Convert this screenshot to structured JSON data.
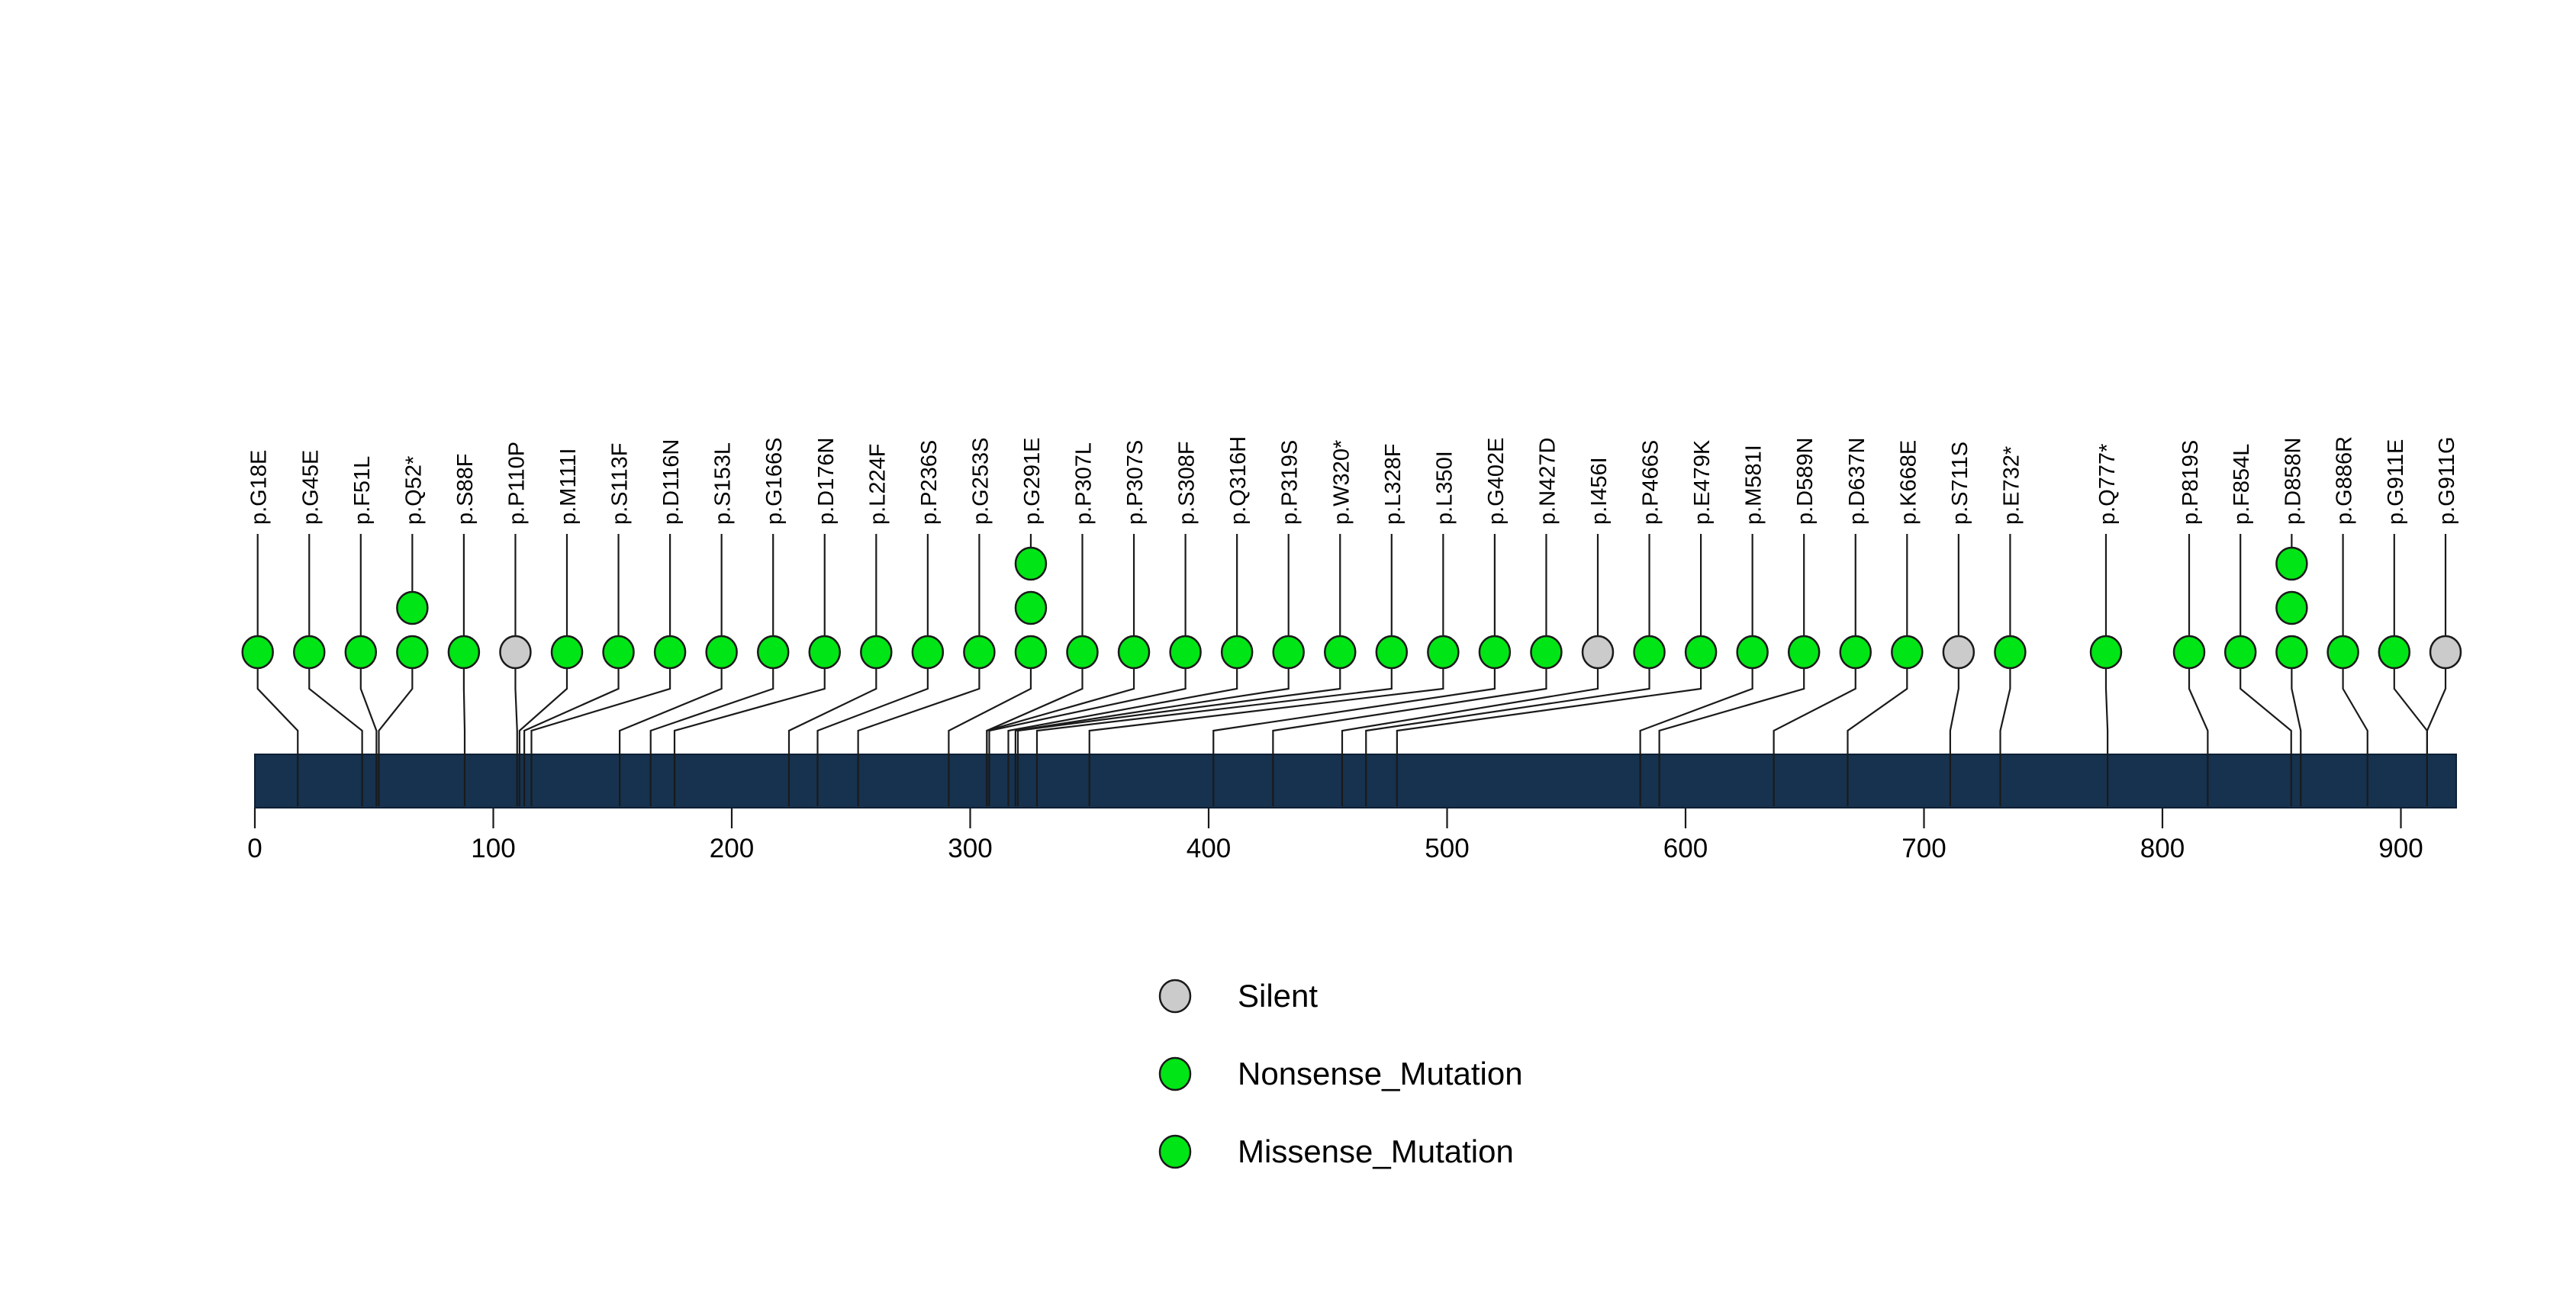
{
  "colors": {
    "Missense_Mutation": "#00E515",
    "Nonsense_Mutation": "#00E515",
    "Silent": "#CBCBCB",
    "protein_bar": "#16324F",
    "line": "#1a1a1a"
  },
  "legend": {
    "items": [
      {
        "label": "Silent",
        "color": "#CBCBCB"
      },
      {
        "label": "Nonsense_Mutation",
        "color": "#00E515"
      },
      {
        "label": "Missense_Mutation",
        "color": "#00E515"
      }
    ]
  },
  "chart_data": {
    "type": "lollipop",
    "title": "",
    "xlabel": "",
    "xlim": [
      0,
      923
    ],
    "x_ticks": [
      0,
      100,
      200,
      300,
      400,
      500,
      600,
      700,
      800,
      900
    ],
    "legend_entries": [
      "Silent",
      "Nonsense_Mutation",
      "Missense_Mutation"
    ],
    "protein_bar_color": "#16324F",
    "mutations": [
      {
        "label": "p.G18E",
        "position": 18,
        "class": "Missense_Mutation",
        "count": 1
      },
      {
        "label": "p.G45E",
        "position": 45,
        "class": "Missense_Mutation",
        "count": 1
      },
      {
        "label": "p.F51L",
        "position": 51,
        "class": "Missense_Mutation",
        "count": 1
      },
      {
        "label": "p.Q52*",
        "position": 52,
        "class": "Nonsense_Mutation",
        "count": 2
      },
      {
        "label": "p.S88F",
        "position": 88,
        "class": "Missense_Mutation",
        "count": 1
      },
      {
        "label": "p.P110P",
        "position": 110,
        "class": "Silent",
        "count": 1
      },
      {
        "label": "p.M111I",
        "position": 111,
        "class": "Missense_Mutation",
        "count": 1
      },
      {
        "label": "p.S113F",
        "position": 113,
        "class": "Missense_Mutation",
        "count": 1
      },
      {
        "label": "p.D116N",
        "position": 116,
        "class": "Missense_Mutation",
        "count": 1
      },
      {
        "label": "p.S153L",
        "position": 153,
        "class": "Missense_Mutation",
        "count": 1
      },
      {
        "label": "p.G166S",
        "position": 166,
        "class": "Missense_Mutation",
        "count": 1
      },
      {
        "label": "p.D176N",
        "position": 176,
        "class": "Missense_Mutation",
        "count": 1
      },
      {
        "label": "p.L224F",
        "position": 224,
        "class": "Missense_Mutation",
        "count": 1
      },
      {
        "label": "p.P236S",
        "position": 236,
        "class": "Missense_Mutation",
        "count": 1
      },
      {
        "label": "p.G253S",
        "position": 253,
        "class": "Missense_Mutation",
        "count": 1
      },
      {
        "label": "p.G291E",
        "position": 291,
        "class": "Missense_Mutation",
        "count": 3
      },
      {
        "label": "p.P307L",
        "position": 307,
        "class": "Missense_Mutation",
        "count": 1
      },
      {
        "label": "p.P307S",
        "position": 307,
        "class": "Missense_Mutation",
        "count": 1
      },
      {
        "label": "p.S308F",
        "position": 308,
        "class": "Missense_Mutation",
        "count": 1
      },
      {
        "label": "p.Q316H",
        "position": 316,
        "class": "Missense_Mutation",
        "count": 1
      },
      {
        "label": "p.P319S",
        "position": 319,
        "class": "Missense_Mutation",
        "count": 1
      },
      {
        "label": "p.W320*",
        "position": 320,
        "class": "Nonsense_Mutation",
        "count": 1
      },
      {
        "label": "p.L328F",
        "position": 328,
        "class": "Missense_Mutation",
        "count": 1
      },
      {
        "label": "p.L350I",
        "position": 350,
        "class": "Missense_Mutation",
        "count": 1
      },
      {
        "label": "p.G402E",
        "position": 402,
        "class": "Missense_Mutation",
        "count": 1
      },
      {
        "label": "p.N427D",
        "position": 427,
        "class": "Missense_Mutation",
        "count": 1
      },
      {
        "label": "p.I456I",
        "position": 456,
        "class": "Silent",
        "count": 1
      },
      {
        "label": "p.P466S",
        "position": 466,
        "class": "Missense_Mutation",
        "count": 1
      },
      {
        "label": "p.E479K",
        "position": 479,
        "class": "Missense_Mutation",
        "count": 1
      },
      {
        "label": "p.M581I",
        "position": 581,
        "class": "Missense_Mutation",
        "count": 1
      },
      {
        "label": "p.D589N",
        "position": 589,
        "class": "Missense_Mutation",
        "count": 1
      },
      {
        "label": "p.D637N",
        "position": 637,
        "class": "Missense_Mutation",
        "count": 1
      },
      {
        "label": "p.K668E",
        "position": 668,
        "class": "Missense_Mutation",
        "count": 1
      },
      {
        "label": "p.S711S",
        "position": 711,
        "class": "Silent",
        "count": 1
      },
      {
        "label": "p.E732*",
        "position": 732,
        "class": "Nonsense_Mutation",
        "count": 1
      },
      {
        "label": "p.Q777*",
        "position": 777,
        "class": "Nonsense_Mutation",
        "count": 1
      },
      {
        "label": "p.P819S",
        "position": 819,
        "class": "Missense_Mutation",
        "count": 1
      },
      {
        "label": "p.F854L",
        "position": 854,
        "class": "Missense_Mutation",
        "count": 1
      },
      {
        "label": "p.D858N",
        "position": 858,
        "class": "Missense_Mutation",
        "count": 3
      },
      {
        "label": "p.G886R",
        "position": 886,
        "class": "Missense_Mutation",
        "count": 1
      },
      {
        "label": "p.G911E",
        "position": 911,
        "class": "Missense_Mutation",
        "count": 1
      },
      {
        "label": "p.G911G",
        "position": 911,
        "class": "Silent",
        "count": 1
      }
    ]
  }
}
